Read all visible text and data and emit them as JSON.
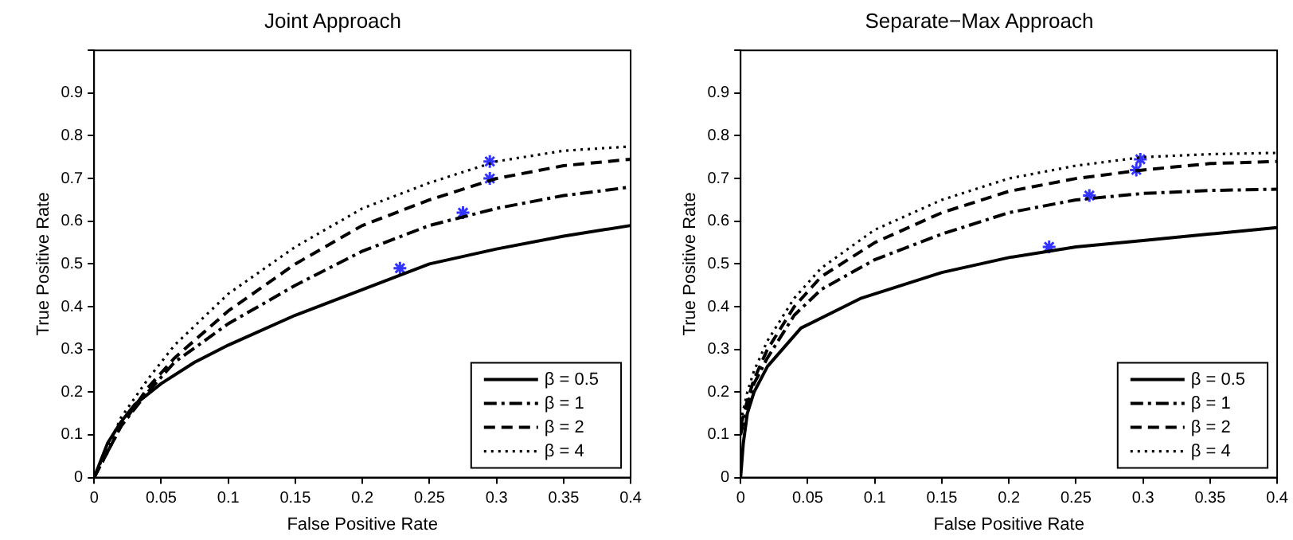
{
  "chart_data": [
    {
      "type": "line",
      "title": "Joint Approach",
      "xlabel": "False Positive Rate",
      "ylabel": "True Positive Rate",
      "xlim": [
        0,
        0.4
      ],
      "ylim": [
        0,
        1
      ],
      "xticks": [
        0,
        0.05,
        0.1,
        0.15,
        0.2,
        0.25,
        0.3,
        0.35,
        0.4
      ],
      "yticks": [
        0,
        0.1,
        0.2,
        0.3,
        0.4,
        0.5,
        0.6,
        0.7,
        0.8,
        0.9,
        {
          "value": 1,
          "label": null
        }
      ],
      "grid": false,
      "legend": "bottom right",
      "series": [
        {
          "name": "β = 0.5",
          "color": "#000000",
          "line_style": "solid",
          "marker": "none",
          "x": [
            0,
            0.01,
            0.02,
            0.03,
            0.05,
            0.075,
            0.1,
            0.15,
            0.2,
            0.25,
            0.3,
            0.35,
            0.4
          ],
          "values": [
            0,
            0.08,
            0.13,
            0.17,
            0.22,
            0.27,
            0.31,
            0.38,
            0.44,
            0.5,
            0.535,
            0.565,
            0.59
          ]
        },
        {
          "name": "β = 1",
          "color": "#000000",
          "line_style": "dashdot",
          "marker": "none",
          "x": [
            0,
            0.01,
            0.02,
            0.04,
            0.06,
            0.1,
            0.15,
            0.2,
            0.25,
            0.3,
            0.35,
            0.4
          ],
          "values": [
            0,
            0.06,
            0.12,
            0.2,
            0.27,
            0.36,
            0.45,
            0.53,
            0.59,
            0.63,
            0.66,
            0.68
          ]
        },
        {
          "name": "β = 2",
          "color": "#000000",
          "line_style": "dashed",
          "marker": "none",
          "x": [
            0,
            0.01,
            0.02,
            0.04,
            0.06,
            0.1,
            0.15,
            0.2,
            0.25,
            0.3,
            0.35,
            0.4
          ],
          "values": [
            0,
            0.06,
            0.12,
            0.21,
            0.28,
            0.39,
            0.5,
            0.59,
            0.65,
            0.7,
            0.73,
            0.745
          ]
        },
        {
          "name": "β = 4",
          "color": "#000000",
          "line_style": "dotted",
          "marker": "none",
          "x": [
            0,
            0.01,
            0.02,
            0.04,
            0.06,
            0.1,
            0.15,
            0.2,
            0.25,
            0.3,
            0.35,
            0.4
          ],
          "values": [
            0,
            0.07,
            0.14,
            0.23,
            0.31,
            0.43,
            0.54,
            0.63,
            0.69,
            0.74,
            0.765,
            0.775
          ]
        },
        {
          "type": "scatter",
          "color": "#3333ff",
          "marker": "cross",
          "x": [
            0.228,
            0.275,
            0.295,
            0.295
          ],
          "values": [
            0.49,
            0.62,
            0.7,
            0.74
          ]
        }
      ]
    },
    {
      "type": "line",
      "title": "Separate−Max Approach",
      "xlabel": "False Positive Rate",
      "ylabel": "True Positive Rate",
      "xlim": [
        0,
        0.4
      ],
      "ylim": [
        0,
        1
      ],
      "xticks": [
        0,
        0.05,
        0.1,
        0.15,
        0.2,
        0.25,
        0.3,
        0.35,
        0.4
      ],
      "yticks": [
        0,
        0.1,
        0.2,
        0.3,
        0.4,
        0.5,
        0.6,
        0.7,
        0.8,
        0.9,
        {
          "value": 1,
          "label": null
        }
      ],
      "grid": false,
      "legend": "bottom right",
      "series": [
        {
          "name": "β = 0.5",
          "color": "#000000",
          "line_style": "solid",
          "marker": "none",
          "x": [
            0,
            0.002,
            0.005,
            0.01,
            0.02,
            0.045,
            0.09,
            0.15,
            0.2,
            0.25,
            0.3,
            0.35,
            0.4
          ],
          "values": [
            0,
            0.08,
            0.15,
            0.2,
            0.26,
            0.35,
            0.42,
            0.48,
            0.515,
            0.54,
            0.555,
            0.57,
            0.585
          ]
        },
        {
          "name": "β = 1",
          "color": "#000000",
          "line_style": "dashdot",
          "marker": "none",
          "x": [
            0,
            0.005,
            0.01,
            0.02,
            0.04,
            0.06,
            0.1,
            0.15,
            0.2,
            0.25,
            0.3,
            0.35,
            0.4
          ],
          "values": [
            0.1,
            0.17,
            0.22,
            0.28,
            0.38,
            0.44,
            0.51,
            0.57,
            0.62,
            0.65,
            0.665,
            0.672,
            0.675
          ]
        },
        {
          "name": "β = 2",
          "color": "#000000",
          "line_style": "dashed",
          "marker": "none",
          "x": [
            0,
            0.005,
            0.01,
            0.02,
            0.04,
            0.06,
            0.1,
            0.15,
            0.2,
            0.25,
            0.3,
            0.35,
            0.4
          ],
          "values": [
            0.12,
            0.18,
            0.23,
            0.3,
            0.4,
            0.47,
            0.55,
            0.62,
            0.67,
            0.7,
            0.72,
            0.735,
            0.74
          ]
        },
        {
          "name": "β = 4",
          "color": "#000000",
          "line_style": "dotted",
          "marker": "none",
          "x": [
            0,
            0.005,
            0.01,
            0.02,
            0.04,
            0.06,
            0.1,
            0.15,
            0.2,
            0.25,
            0.3,
            0.35,
            0.4
          ],
          "values": [
            0.13,
            0.2,
            0.25,
            0.32,
            0.42,
            0.49,
            0.58,
            0.65,
            0.7,
            0.73,
            0.75,
            0.757,
            0.76
          ]
        },
        {
          "type": "scatter",
          "color": "#3333ff",
          "marker": "cross",
          "x": [
            0.23,
            0.26,
            0.295,
            0.298
          ],
          "values": [
            0.54,
            0.66,
            0.72,
            0.745
          ]
        }
      ]
    }
  ]
}
